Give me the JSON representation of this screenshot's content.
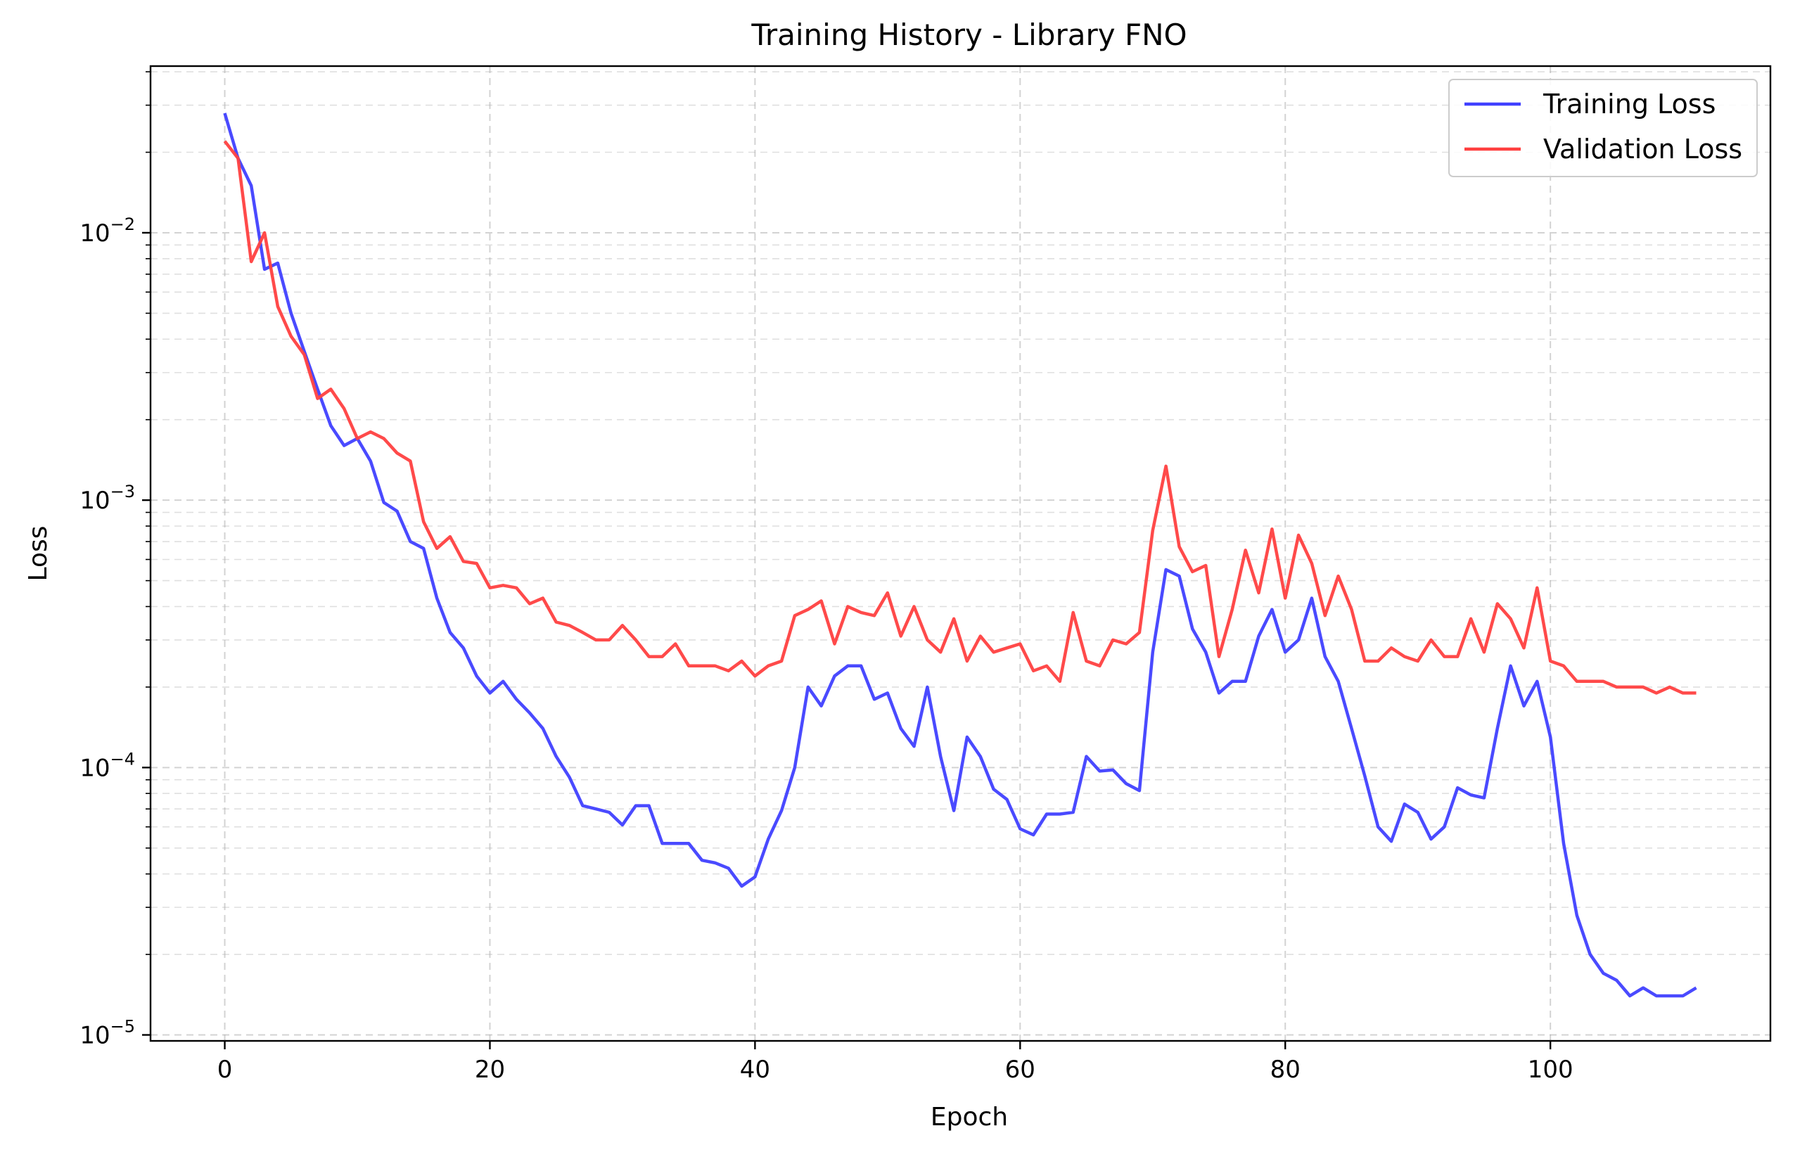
{
  "chart_data": {
    "type": "line",
    "title": "Training History - Library FNO",
    "xlabel": "Epoch",
    "ylabel": "Loss",
    "xlim": [
      -5.6,
      116.6
    ],
    "ylim": [
      9.5e-06,
      0.042
    ],
    "yscale": "log",
    "grid": true,
    "legend_position": "top-right",
    "x_ticks": [
      {
        "value": 0,
        "label": "0"
      },
      {
        "value": 20,
        "label": "20"
      },
      {
        "value": 40,
        "label": "40"
      },
      {
        "value": 60,
        "label": "60"
      },
      {
        "value": 80,
        "label": "80"
      },
      {
        "value": 100,
        "label": "100"
      }
    ],
    "y_ticks": [
      {
        "value": 1e-05,
        "base": "10",
        "exponent": "−5"
      },
      {
        "value": 0.0001,
        "base": "10",
        "exponent": "−4"
      },
      {
        "value": 0.001,
        "base": "10",
        "exponent": "−3"
      },
      {
        "value": 0.01,
        "base": "10",
        "exponent": "−2"
      }
    ],
    "x_start": 0,
    "series": [
      {
        "name": "Training Loss",
        "color": "#4040ff",
        "values": [
          0.028,
          0.019,
          0.015,
          0.0073,
          0.0077,
          0.005,
          0.0036,
          0.0026,
          0.0019,
          0.0016,
          0.0017,
          0.0014,
          0.00098,
          0.00091,
          0.0007,
          0.00066,
          0.00043,
          0.00032,
          0.00028,
          0.00022,
          0.00019,
          0.00021,
          0.00018,
          0.00016,
          0.00014,
          0.00011,
          9.2e-05,
          7.2e-05,
          7e-05,
          6.8e-05,
          6.1e-05,
          7.2e-05,
          7.2e-05,
          5.2e-05,
          5.2e-05,
          5.2e-05,
          4.5e-05,
          4.4e-05,
          4.2e-05,
          3.6e-05,
          3.9e-05,
          5.4e-05,
          6.9e-05,
          0.0001,
          0.0002,
          0.00017,
          0.00022,
          0.00024,
          0.00024,
          0.00018,
          0.00019,
          0.00014,
          0.00012,
          0.0002,
          0.00011,
          6.9e-05,
          0.00013,
          0.00011,
          8.3e-05,
          7.6e-05,
          5.9e-05,
          5.6e-05,
          6.7e-05,
          6.7e-05,
          6.8e-05,
          0.00011,
          9.7e-05,
          9.8e-05,
          8.7e-05,
          8.2e-05,
          0.00027,
          0.00055,
          0.00052,
          0.00033,
          0.00027,
          0.00019,
          0.00021,
          0.00021,
          0.00031,
          0.00039,
          0.00027,
          0.0003,
          0.00043,
          0.00026,
          0.00021,
          0.00014,
          9.3e-05,
          6e-05,
          5.3e-05,
          7.3e-05,
          6.8e-05,
          5.4e-05,
          6e-05,
          8.4e-05,
          7.9e-05,
          7.7e-05,
          0.00014,
          0.00024,
          0.00017,
          0.00021,
          0.00013,
          5.2e-05,
          2.8e-05,
          2e-05,
          1.7e-05,
          1.6e-05,
          1.4e-05,
          1.5e-05,
          1.4e-05,
          1.4e-05,
          1.4e-05,
          1.5e-05
        ]
      },
      {
        "name": "Validation Loss",
        "color": "#ff4040",
        "values": [
          0.022,
          0.019,
          0.0078,
          0.01,
          0.0053,
          0.0041,
          0.0035,
          0.0024,
          0.0026,
          0.0022,
          0.0017,
          0.0018,
          0.0017,
          0.0015,
          0.0014,
          0.00083,
          0.00066,
          0.00073,
          0.00059,
          0.00058,
          0.00047,
          0.00048,
          0.00047,
          0.00041,
          0.00043,
          0.00035,
          0.00034,
          0.00032,
          0.0003,
          0.0003,
          0.00034,
          0.0003,
          0.00026,
          0.00026,
          0.00029,
          0.00024,
          0.00024,
          0.00024,
          0.00023,
          0.00025,
          0.00022,
          0.00024,
          0.00025,
          0.00037,
          0.00039,
          0.00042,
          0.00029,
          0.0004,
          0.00038,
          0.00037,
          0.00045,
          0.00031,
          0.0004,
          0.0003,
          0.00027,
          0.00036,
          0.00025,
          0.00031,
          0.00027,
          0.00028,
          0.00029,
          0.00023,
          0.00024,
          0.00021,
          0.00038,
          0.00025,
          0.00024,
          0.0003,
          0.00029,
          0.00032,
          0.00077,
          0.00134,
          0.00067,
          0.00054,
          0.00057,
          0.00026,
          0.00039,
          0.00065,
          0.00045,
          0.00078,
          0.00043,
          0.00074,
          0.00058,
          0.00037,
          0.00052,
          0.00039,
          0.00025,
          0.00025,
          0.00028,
          0.00026,
          0.00025,
          0.0003,
          0.00026,
          0.00026,
          0.00036,
          0.00027,
          0.00041,
          0.00036,
          0.00028,
          0.00047,
          0.00025,
          0.00024,
          0.00021,
          0.00021,
          0.00021,
          0.0002,
          0.0002,
          0.0002,
          0.00019,
          0.0002,
          0.00019,
          0.00019
        ]
      }
    ]
  }
}
